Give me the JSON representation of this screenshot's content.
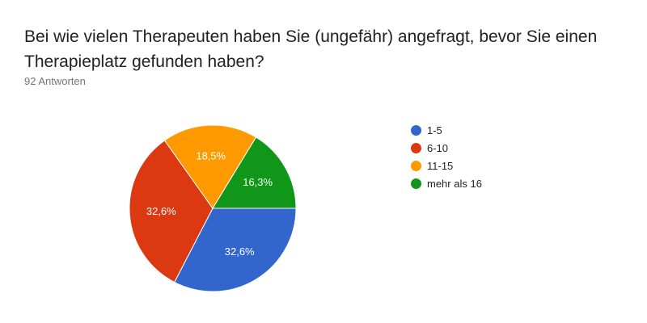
{
  "question": {
    "title": "Bei wie vielen Therapeuten haben Sie (ungefähr) angefragt, bevor Sie einen Therapieplatz gefunden haben?",
    "responses": "92 Antworten"
  },
  "chart_data": {
    "type": "pie",
    "title": "Bei wie vielen Therapeuten haben Sie (ungefähr) angefragt, bevor Sie einen Therapieplatz gefunden haben?",
    "categories": [
      "1-5",
      "6-10",
      "11-15",
      "mehr als 16"
    ],
    "values": [
      32.6,
      32.6,
      18.5,
      16.3
    ],
    "value_labels": [
      "32,6%",
      "32,6%",
      "18,5%",
      "16,3%"
    ],
    "colors": [
      "#3366cc",
      "#dc3912",
      "#ff9900",
      "#109618"
    ],
    "legend_position": "right"
  }
}
